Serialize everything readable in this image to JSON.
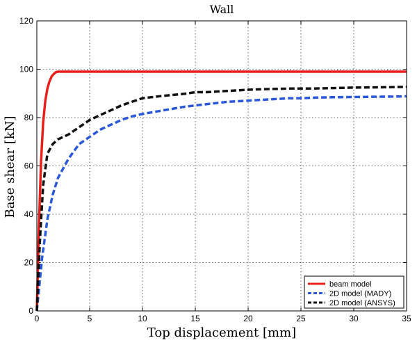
{
  "chart_data": {
    "type": "line",
    "title": "Wall",
    "xlabel": "Top displacement [mm]",
    "ylabel": "Base shear [kN]",
    "xlim": [
      0,
      35
    ],
    "ylim": [
      0,
      120
    ],
    "xticks": [
      0,
      5,
      10,
      15,
      20,
      25,
      30,
      35
    ],
    "yticks": [
      0,
      20,
      40,
      60,
      80,
      100,
      120
    ],
    "grid": true,
    "legend_position": "bottom-right",
    "series": [
      {
        "name": "beam model",
        "color": "#e8201c",
        "dash": "solid",
        "x": [
          0,
          0.2,
          0.4,
          0.6,
          0.8,
          1.0,
          1.2,
          1.4,
          1.6,
          1.8,
          2.0,
          35
        ],
        "y": [
          0,
          35,
          62,
          78,
          87,
          92,
          95,
          97,
          98,
          98.8,
          99,
          99
        ]
      },
      {
        "name": "2D model (MADY)",
        "color": "#2a58d8",
        "dash": "dashed",
        "x": [
          0,
          0.5,
          1,
          1.5,
          2,
          3,
          4,
          5,
          6,
          7,
          8,
          9,
          10,
          12,
          14,
          15,
          16,
          18,
          20,
          22,
          24,
          25,
          26,
          28,
          30,
          32,
          34,
          35
        ],
        "y": [
          0,
          22,
          38,
          48,
          55,
          63,
          69,
          72,
          75,
          77,
          79,
          80.5,
          81.5,
          83,
          84.5,
          85,
          85.5,
          86.5,
          87,
          87.5,
          88,
          88,
          88.2,
          88.4,
          88.5,
          88.6,
          88.7,
          88.8
        ]
      },
      {
        "name": "2D model (ANSYS)",
        "color": "#111111",
        "dash": "dashed",
        "x": [
          0,
          0.3,
          0.6,
          1,
          1.5,
          2,
          3,
          4,
          5,
          6,
          7,
          8,
          9,
          10,
          12,
          14,
          15,
          16,
          18,
          20,
          22,
          24,
          26,
          28,
          30,
          32,
          34,
          35
        ],
        "y": [
          0,
          30,
          52,
          65,
          69,
          71,
          73,
          76,
          79,
          81,
          83,
          85,
          86.5,
          88,
          89,
          89.8,
          90.5,
          90.5,
          91,
          91.5,
          91.8,
          92,
          92,
          92.2,
          92.4,
          92.5,
          92.6,
          92.7
        ]
      }
    ]
  }
}
